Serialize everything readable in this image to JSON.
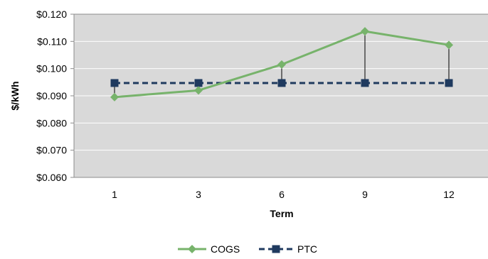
{
  "chart_data": {
    "type": "line",
    "title": "",
    "xlabel": "Term",
    "ylabel": "$/kWh",
    "categories": [
      "1",
      "3",
      "6",
      "9",
      "12"
    ],
    "ylim": [
      0.06,
      0.12
    ],
    "yticks": [
      0.06,
      0.07,
      0.08,
      0.09,
      0.1,
      0.11,
      0.12
    ],
    "ytick_labels": [
      "$0.060",
      "$0.070",
      "$0.080",
      "$0.090",
      "$0.100",
      "$0.110",
      "$0.120"
    ],
    "grid": "horizontal",
    "legend": "bottom-center",
    "series": [
      {
        "name": "COGS",
        "values": [
          0.0895,
          0.092,
          0.1015,
          0.1137,
          0.1087
        ],
        "color": "#77b36b",
        "marker": "diamond",
        "line_style": "solid"
      },
      {
        "name": "PTC",
        "values": [
          0.0947,
          0.0947,
          0.0947,
          0.0947,
          0.0947
        ],
        "color": "#1f3a5f",
        "marker": "square",
        "line_style": "dashed"
      }
    ],
    "difference_lines": true,
    "plot_background": "#d9d9d9",
    "gridline_color": "#ffffff",
    "frame_color": "#8c8c8c"
  }
}
